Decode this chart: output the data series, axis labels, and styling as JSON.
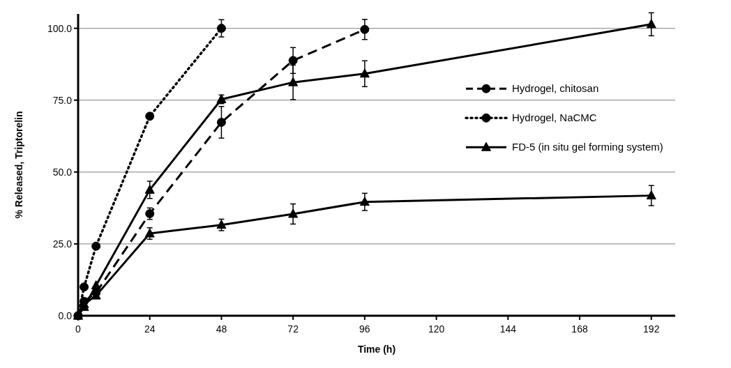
{
  "chart_data": {
    "type": "line",
    "xlabel": "Time (h)",
    "ylabel": "% Released, Triptorelin",
    "xlim": [
      0,
      200
    ],
    "xticks": [
      0,
      24,
      48,
      72,
      96,
      120,
      144,
      168,
      192
    ],
    "ylim": [
      0,
      105
    ],
    "yticks": [
      {
        "value": 0,
        "label": "0.0"
      },
      {
        "value": 25,
        "label": "25.0"
      },
      {
        "value": 50,
        "label": "50.0"
      },
      {
        "value": 75,
        "label": "75.0"
      },
      {
        "value": 100,
        "label": "100.0"
      }
    ],
    "grid": "y",
    "legend": "right",
    "series": [
      {
        "name": "Hydrogel, chitosan",
        "color": "#000000",
        "marker": "circle",
        "line_style": "dashed",
        "x": [
          0,
          2,
          6,
          24,
          48,
          72,
          96
        ],
        "values": [
          0,
          5,
          8,
          35.5,
          67.3,
          88.8,
          99.6
        ],
        "errors": [
          null,
          null,
          null,
          2,
          5.5,
          4.5,
          3.5
        ]
      },
      {
        "name": "Hydrogel, NaCMC",
        "color": "#000000",
        "marker": "circle",
        "line_style": "dotted",
        "x": [
          0,
          2,
          6,
          24,
          48
        ],
        "values": [
          0,
          10,
          24.2,
          69.4,
          100
        ],
        "errors": [
          null,
          null,
          null,
          null,
          3
        ]
      },
      {
        "name": "FD-5 (in situ gel forming system)",
        "color": "#000000",
        "marker": "triangle",
        "line_style": "solid",
        "x": [
          0,
          2,
          6,
          24,
          48,
          72,
          96,
          192
        ],
        "values": [
          0,
          3,
          10.5,
          43.8,
          75.3,
          81.2,
          84.2,
          101.4
        ],
        "errors": [
          null,
          null,
          null,
          3,
          1.5,
          6,
          4.5,
          4
        ]
      },
      {
        "color": "#000000",
        "marker": "triangle",
        "line_style": "solid",
        "x": [
          0,
          2,
          6,
          24,
          48,
          72,
          96,
          192
        ],
        "values": [
          0,
          4,
          7,
          28.6,
          31.6,
          35.4,
          39.6,
          41.8
        ],
        "errors": [
          null,
          null,
          null,
          2,
          2,
          3.5,
          3,
          3.5
        ]
      }
    ]
  }
}
